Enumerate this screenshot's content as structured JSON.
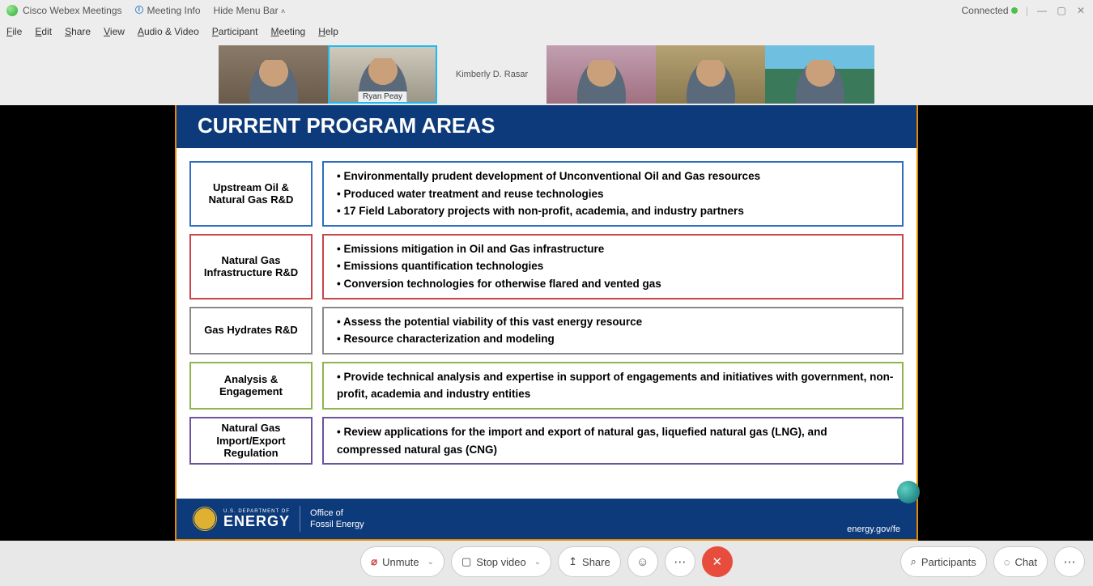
{
  "titlebar": {
    "app_name": "Cisco Webex Meetings",
    "meeting_info": "Meeting Info",
    "hide_menu": "Hide Menu Bar",
    "connected": "Connected"
  },
  "menu": {
    "file": "File",
    "edit": "Edit",
    "share": "Share",
    "view": "View",
    "audio_video": "Audio & Video",
    "participant": "Participant",
    "meeting": "Meeting",
    "help": "Help"
  },
  "participants": [
    {
      "label": ""
    },
    {
      "label": "Ryan Peay",
      "active": true
    },
    {
      "label": "Kimberly D. Rasar",
      "placeholder": true
    },
    {
      "label": ""
    },
    {
      "label": ""
    },
    {
      "label": ""
    }
  ],
  "slide": {
    "title": "CURRENT PROGRAM AREAS",
    "rows": [
      {
        "color": "#2e6fbf",
        "label": "Upstream Oil & Natural Gas R&D",
        "bullets": [
          "Environmentally prudent development of Unconventional Oil and Gas resources",
          "Produced water treatment and reuse technologies",
          "17 Field Laboratory projects with non-profit, academia, and industry partners"
        ]
      },
      {
        "color": "#c84548",
        "label": "Natural Gas Infrastructure R&D",
        "bullets": [
          "Emissions mitigation in Oil and Gas infrastructure",
          "Emissions quantification technologies",
          "Conversion technologies for otherwise flared and vented gas"
        ]
      },
      {
        "color": "#8a8a8a",
        "label": "Gas Hydrates R&D",
        "bullets": [
          "Assess the potential viability of this vast energy resource",
          "Resource characterization and modeling"
        ]
      },
      {
        "color": "#8fb54c",
        "label": "Analysis & Engagement",
        "bullets": [
          "Provide technical analysis and expertise in support of engagements and initiatives with government, non-profit, academia and industry entities"
        ]
      },
      {
        "color": "#6b549b",
        "label": "Natural Gas Import/Export Regulation",
        "bullets": [
          "Review applications for the import and export of natural gas, liquefied natural gas (LNG), and compressed natural gas (CNG)"
        ]
      }
    ],
    "footer": {
      "dept": "U.S. DEPARTMENT OF",
      "energy": "ENERGY",
      "office_l1": "Office of",
      "office_l2": "Fossil Energy",
      "url": "energy.gov/fe"
    }
  },
  "controls": {
    "unmute": "Unmute",
    "stop_video": "Stop video",
    "share": "Share",
    "participants_btn": "Participants",
    "chat_btn": "Chat"
  }
}
